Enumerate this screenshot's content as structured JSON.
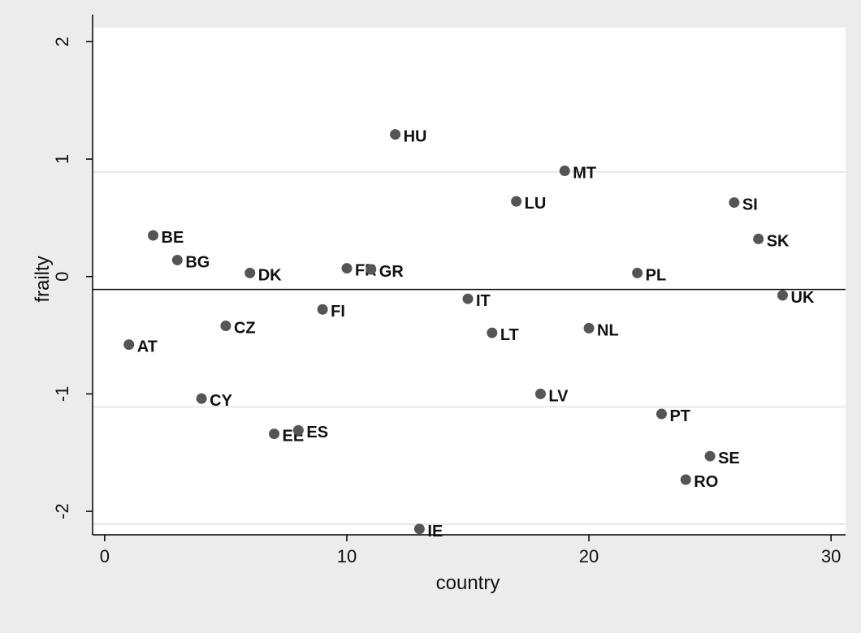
{
  "chart_data": {
    "type": "scatter",
    "title": "",
    "xlabel": "country",
    "ylabel": "frailty",
    "xlim": [
      -0.5,
      30.6
    ],
    "ylim": [
      -2.2,
      2.12
    ],
    "x_ticks": [
      0,
      10,
      20,
      30
    ],
    "y_ticks": [
      -2,
      -1,
      0,
      1,
      2
    ],
    "x_tick_labels": [
      "0",
      "10",
      "20",
      "30"
    ],
    "y_tick_labels": [
      "-2",
      "-1",
      "0",
      "1",
      "2"
    ],
    "reference_lines": [
      {
        "y": -0.11,
        "style": "solid",
        "color": "#000000"
      },
      {
        "y": 0.89,
        "style": "solid",
        "color": "#d8d8d8"
      },
      {
        "y": -1.11,
        "style": "solid",
        "color": "#d8d8d8"
      },
      {
        "y": -2.11,
        "style": "solid",
        "color": "#d8d8d8"
      }
    ],
    "grid": false,
    "legend": "none",
    "colors": {
      "marker": "#555555",
      "plot_bg": "#ffffff",
      "outer_bg": "#ececec",
      "axis": "#000000"
    },
    "points": [
      {
        "label": "AT",
        "x": 1,
        "y": -0.58
      },
      {
        "label": "BE",
        "x": 2,
        "y": 0.35
      },
      {
        "label": "BG",
        "x": 3,
        "y": 0.14
      },
      {
        "label": "CY",
        "x": 4,
        "y": -1.04
      },
      {
        "label": "CZ",
        "x": 5,
        "y": -0.42
      },
      {
        "label": "DK",
        "x": 6,
        "y": 0.03
      },
      {
        "label": "EE",
        "x": 7,
        "y": -1.34
      },
      {
        "label": "ES",
        "x": 8,
        "y": -1.31
      },
      {
        "label": "FI",
        "x": 9,
        "y": -0.28
      },
      {
        "label": "FR",
        "x": 10,
        "y": 0.07
      },
      {
        "label": "GR",
        "x": 11,
        "y": 0.06
      },
      {
        "label": "HU",
        "x": 12,
        "y": 1.21
      },
      {
        "label": "IE",
        "x": 13,
        "y": -2.15
      },
      {
        "label": "IT",
        "x": 15,
        "y": -0.19
      },
      {
        "label": "LT",
        "x": 16,
        "y": -0.48
      },
      {
        "label": "LU",
        "x": 17,
        "y": 0.64
      },
      {
        "label": "LV",
        "x": 18,
        "y": -1.0
      },
      {
        "label": "MT",
        "x": 19,
        "y": 0.9
      },
      {
        "label": "NL",
        "x": 20,
        "y": -0.44
      },
      {
        "label": "PL",
        "x": 22,
        "y": 0.03
      },
      {
        "label": "PT",
        "x": 23,
        "y": -1.17
      },
      {
        "label": "RO",
        "x": 24,
        "y": -1.73
      },
      {
        "label": "SE",
        "x": 25,
        "y": -1.53
      },
      {
        "label": "SI",
        "x": 26,
        "y": 0.63
      },
      {
        "label": "SK",
        "x": 27,
        "y": 0.32
      },
      {
        "label": "UK",
        "x": 28,
        "y": -0.16
      }
    ]
  }
}
